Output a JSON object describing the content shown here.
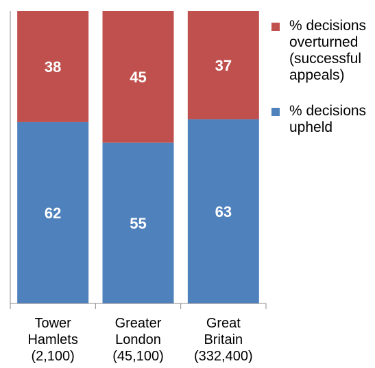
{
  "chart_data": {
    "type": "bar",
    "stacked": true,
    "categories": [
      "Tower\nHamlets\n(2,100)",
      "Greater\nLondon\n(45,100)",
      "Great\nBritain\n(332,400)"
    ],
    "series": [
      {
        "name": "% decisions upheld",
        "color": "#4f81bd",
        "values": [
          62,
          55,
          63
        ]
      },
      {
        "name": "% decisions overturned (successful appeals)",
        "color": "#c0504d",
        "values": [
          38,
          45,
          37
        ]
      }
    ],
    "ylim": [
      0,
      100
    ],
    "grid": false,
    "legend_position": "right",
    "data_labels": true
  },
  "legend": {
    "items": [
      {
        "label": "% decisions overturned (successful appeals)",
        "color": "#c0504d"
      },
      {
        "label": "% decisions upheld",
        "color": "#4f81bd"
      }
    ]
  }
}
